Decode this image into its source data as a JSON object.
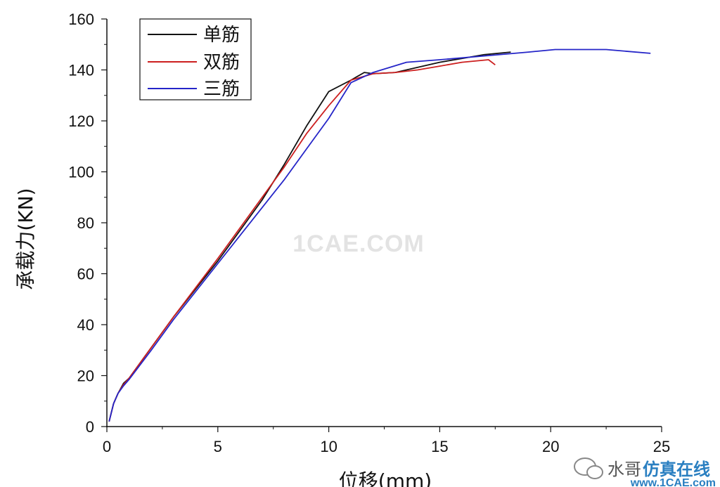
{
  "chart_data": {
    "type": "line",
    "xlabel": "位移(mm)",
    "ylabel": "承载力(KN)",
    "xlim": [
      0,
      25
    ],
    "ylim": [
      0,
      160
    ],
    "xticks": [
      0,
      5,
      10,
      15,
      20,
      25
    ],
    "yticks": [
      0,
      20,
      40,
      60,
      80,
      100,
      120,
      140,
      160
    ],
    "grid": false,
    "legend_position": "top-left",
    "series": [
      {
        "name": "单筋",
        "color": "#111111",
        "points": [
          [
            0.1,
            2
          ],
          [
            0.3,
            9
          ],
          [
            0.5,
            13
          ],
          [
            0.75,
            17
          ],
          [
            1.0,
            19
          ],
          [
            2.0,
            31
          ],
          [
            3.0,
            43
          ],
          [
            4.0,
            54
          ],
          [
            5.0,
            65
          ],
          [
            6.0,
            77
          ],
          [
            7.0,
            89
          ],
          [
            8.0,
            103
          ],
          [
            9.0,
            118
          ],
          [
            10.0,
            131.5
          ],
          [
            11.0,
            136
          ],
          [
            11.6,
            139
          ],
          [
            12.0,
            138.5
          ],
          [
            13.0,
            139
          ],
          [
            14.0,
            141
          ],
          [
            15.0,
            143
          ],
          [
            16.0,
            144.5
          ],
          [
            17.0,
            146
          ],
          [
            18.2,
            147
          ]
        ]
      },
      {
        "name": "双筋",
        "color": "#cc1f1f",
        "points": [
          [
            0.1,
            2
          ],
          [
            0.3,
            9
          ],
          [
            0.5,
            13
          ],
          [
            0.75,
            16.5
          ],
          [
            1.0,
            19
          ],
          [
            2.0,
            31
          ],
          [
            3.0,
            43
          ],
          [
            4.0,
            54.5
          ],
          [
            5.0,
            66
          ],
          [
            6.0,
            78
          ],
          [
            7.0,
            90
          ],
          [
            8.0,
            102
          ],
          [
            9.0,
            115
          ],
          [
            10.0,
            126
          ],
          [
            11.0,
            136
          ],
          [
            12.0,
            138.5
          ],
          [
            13.0,
            139
          ],
          [
            14.0,
            140
          ],
          [
            15.0,
            141.5
          ],
          [
            16.0,
            143
          ],
          [
            17.2,
            144
          ],
          [
            17.5,
            142
          ]
        ]
      },
      {
        "name": "三筋",
        "color": "#2525c8",
        "points": [
          [
            0.1,
            2
          ],
          [
            0.3,
            9
          ],
          [
            0.5,
            13
          ],
          [
            0.75,
            16
          ],
          [
            1.0,
            18.5
          ],
          [
            2.0,
            30
          ],
          [
            3.0,
            42
          ],
          [
            4.0,
            53
          ],
          [
            5.0,
            64
          ],
          [
            6.0,
            75
          ],
          [
            7.0,
            86
          ],
          [
            8.0,
            97
          ],
          [
            9.0,
            109
          ],
          [
            10.0,
            121
          ],
          [
            11.0,
            135
          ],
          [
            12.0,
            139
          ],
          [
            13.5,
            143
          ],
          [
            15.0,
            144
          ],
          [
            17.0,
            145.5
          ],
          [
            19.0,
            147
          ],
          [
            20.2,
            148
          ],
          [
            22.5,
            148
          ],
          [
            24.5,
            146.5
          ]
        ]
      }
    ]
  },
  "watermarks": {
    "center": "1CAE.COM",
    "credit_prefix": "水哥",
    "credit_main": "仿真在线",
    "credit_site": "www.1CAE.com"
  }
}
